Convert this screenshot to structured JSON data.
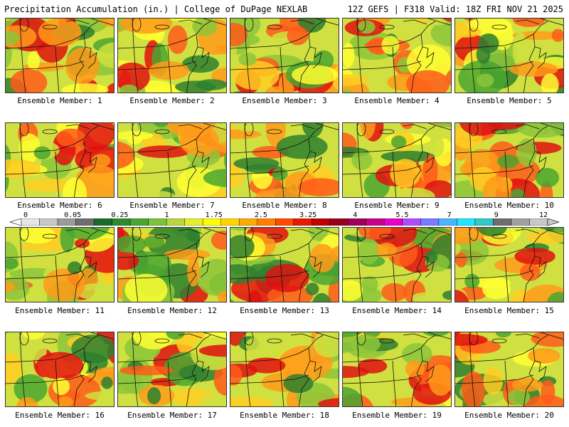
{
  "header": {
    "left": "Precipitation Accumulation (in.) | College of DuPage NEXLAB",
    "right": "12Z GEFS | F318 Valid: 18Z FRI NOV 21 2025"
  },
  "colorbar": {
    "labels": [
      "0",
      "0.05",
      "0.25",
      "1",
      "1.75",
      "2.5",
      "3.25",
      "4",
      "5.5",
      "7",
      "9",
      "12"
    ],
    "colors": [
      "#e6e6e6",
      "#c8c8c8",
      "#9a9a9a",
      "#6e6e6e",
      "#1a6b2a",
      "#2f8a2f",
      "#4aa630",
      "#7cc23a",
      "#b7d83a",
      "#e6ee2c",
      "#ffff00",
      "#ffd400",
      "#ffaa00",
      "#ff7f00",
      "#ff4a00",
      "#e61a00",
      "#c00000",
      "#9a0018",
      "#a0005a",
      "#c8008c",
      "#e600c8",
      "#b04cff",
      "#7a7aff",
      "#4ab4ff",
      "#20e6ff",
      "#30c8c8",
      "#6e6e6e",
      "#a0a0a0",
      "#c8c8c8"
    ]
  },
  "panels": [
    {
      "caption": "Ensemble Member: 1"
    },
    {
      "caption": "Ensemble Member: 2"
    },
    {
      "caption": "Ensemble Member: 3"
    },
    {
      "caption": "Ensemble Member: 4"
    },
    {
      "caption": "Ensemble Member: 5"
    },
    {
      "caption": "Ensemble Member: 6"
    },
    {
      "caption": "Ensemble Member: 7"
    },
    {
      "caption": "Ensemble Member: 8"
    },
    {
      "caption": "Ensemble Member: 9"
    },
    {
      "caption": "Ensemble Member: 10"
    },
    {
      "caption": "Ensemble Member: 11"
    },
    {
      "caption": "Ensemble Member: 12"
    },
    {
      "caption": "Ensemble Member: 13"
    },
    {
      "caption": "Ensemble Member: 14"
    },
    {
      "caption": "Ensemble Member: 15"
    },
    {
      "caption": "Ensemble Member: 16"
    },
    {
      "caption": "Ensemble Member: 17"
    },
    {
      "caption": "Ensemble Member: 18"
    },
    {
      "caption": "Ensemble Member: 19"
    },
    {
      "caption": "Ensemble Member: 20"
    }
  ]
}
